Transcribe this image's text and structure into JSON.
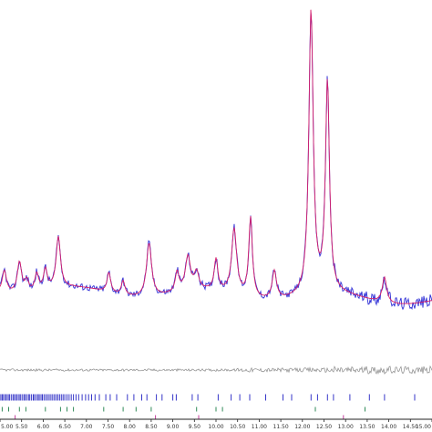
{
  "chart_data": {
    "type": "line",
    "title": "",
    "xlabel": "",
    "ylabel": "",
    "xlim": [
      5.0,
      15.0
    ],
    "grid": false,
    "x_ticks": [
      5.0,
      5.5,
      6.0,
      6.5,
      7.0,
      7.5,
      8.0,
      8.5,
      9.0,
      9.5,
      10.0,
      10.5,
      11.0,
      11.5,
      12.0,
      12.5,
      13.0,
      13.5,
      14.0,
      14.5,
      15.0
    ],
    "x_tick_labels": [
      "5.00",
      "5.50",
      "6.00",
      "6.50",
      "7.00",
      "7.50",
      "8.00",
      "8.50",
      "9.00",
      "9.50",
      "10.00",
      "10.50",
      "11.00",
      "11.50",
      "12.00",
      "12.50",
      "13.00",
      "13.50",
      "14.00",
      "14.50",
      "15.00"
    ],
    "peaks": [
      {
        "x": 5.1,
        "height": 0.08,
        "width": 0.06
      },
      {
        "x": 5.45,
        "height": 0.11,
        "width": 0.06
      },
      {
        "x": 5.62,
        "height": 0.04,
        "width": 0.05
      },
      {
        "x": 5.85,
        "height": 0.06,
        "width": 0.05
      },
      {
        "x": 6.05,
        "height": 0.07,
        "width": 0.05
      },
      {
        "x": 6.35,
        "height": 0.18,
        "width": 0.06
      },
      {
        "x": 7.52,
        "height": 0.07,
        "width": 0.05
      },
      {
        "x": 7.85,
        "height": 0.05,
        "width": 0.05
      },
      {
        "x": 8.45,
        "height": 0.19,
        "width": 0.07
      },
      {
        "x": 9.1,
        "height": 0.07,
        "width": 0.05
      },
      {
        "x": 9.35,
        "height": 0.12,
        "width": 0.07
      },
      {
        "x": 9.55,
        "height": 0.06,
        "width": 0.06
      },
      {
        "x": 10.0,
        "height": 0.11,
        "width": 0.05
      },
      {
        "x": 10.42,
        "height": 0.23,
        "width": 0.07
      },
      {
        "x": 10.8,
        "height": 0.28,
        "width": 0.05
      },
      {
        "x": 11.35,
        "height": 0.1,
        "width": 0.06
      },
      {
        "x": 12.2,
        "height": 1.0,
        "width": 0.06
      },
      {
        "x": 12.58,
        "height": 0.74,
        "width": 0.055
      },
      {
        "x": 13.9,
        "height": 0.09,
        "width": 0.06
      }
    ],
    "series": [
      {
        "color": "#2e2ed6",
        "kind": "observed"
      },
      {
        "color": "#d61f6a",
        "kind": "calculated"
      },
      {
        "color": "#8a8a8a",
        "kind": "difference"
      }
    ],
    "reflection_markers": [
      {
        "color": "#3636c8",
        "positions": [
          5.02,
          5.05,
          5.08,
          5.12,
          5.15,
          5.19,
          5.22,
          5.26,
          5.3,
          5.33,
          5.37,
          5.4,
          5.44,
          5.47,
          5.51,
          5.55,
          5.58,
          5.62,
          5.66,
          5.69,
          5.73,
          5.77,
          5.8,
          5.84,
          5.88,
          5.91,
          5.95,
          5.98,
          6.02,
          6.06,
          6.1,
          6.14,
          6.18,
          6.22,
          6.26,
          6.3,
          6.34,
          6.38,
          6.42,
          6.46,
          6.5,
          6.55,
          6.6,
          6.65,
          6.7,
          6.76,
          6.82,
          6.9,
          6.98,
          7.05,
          7.12,
          7.2,
          7.3,
          7.45,
          7.55,
          7.7,
          7.95,
          8.1,
          8.28,
          8.4,
          8.62,
          8.75,
          9.0,
          9.08,
          9.45,
          9.58,
          10.05,
          10.35,
          10.55,
          10.78,
          11.15,
          11.55,
          11.75,
          12.2,
          12.35,
          12.58,
          12.72,
          13.1,
          13.55,
          13.9,
          14.6
        ]
      },
      {
        "color": "#2f8a57",
        "positions": [
          5.05,
          5.2,
          5.45,
          5.6,
          6.05,
          6.4,
          6.55,
          6.7,
          7.4,
          7.85,
          8.15,
          8.5,
          9.55,
          10.0,
          10.15,
          12.3,
          13.45
        ]
      },
      {
        "color": "#c43d9c",
        "positions": [
          5.35,
          8.6,
          9.6,
          12.95
        ]
      }
    ]
  }
}
